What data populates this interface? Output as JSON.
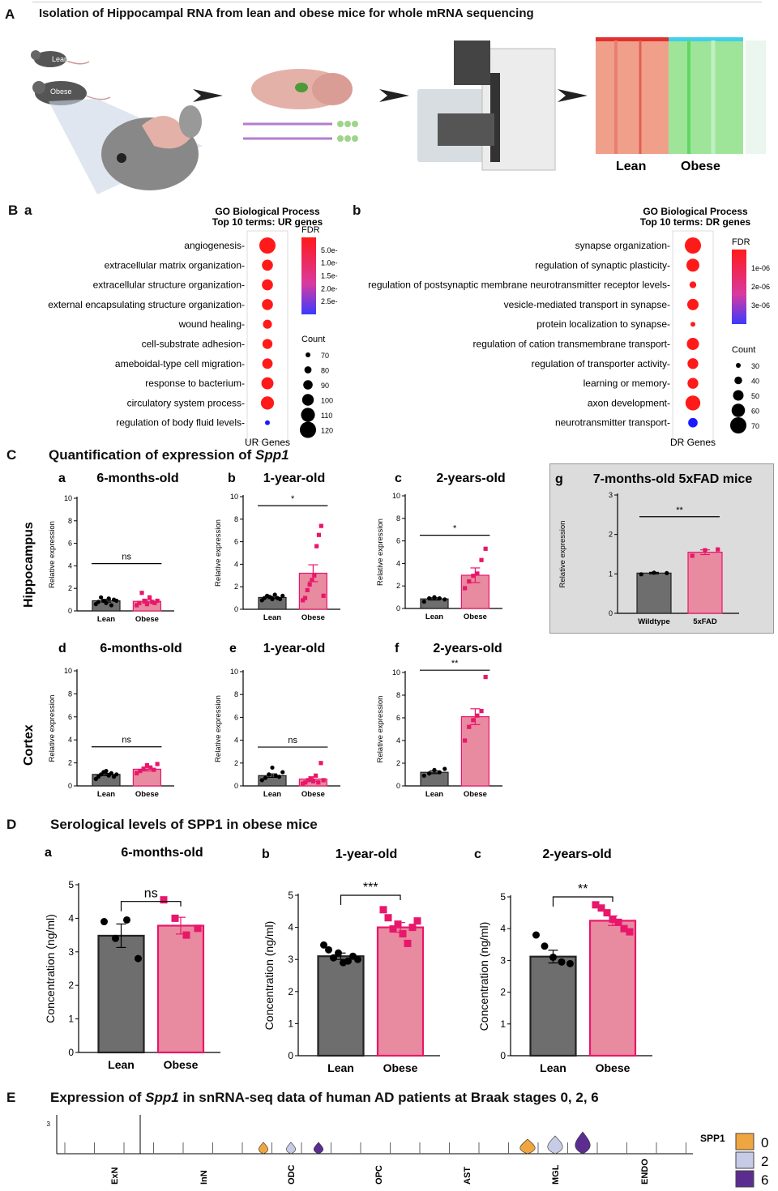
{
  "panelA": {
    "letter": "A",
    "title": "Isolation of Hippocampal RNA from lean and obese mice for whole mRNA sequencing",
    "mouse_labels": [
      "Lean",
      "Obese"
    ],
    "heatmap_labels": [
      "Lean",
      "Obese"
    ]
  },
  "panelB": {
    "letter": "B",
    "a": {
      "letter": "a",
      "title1": "GO Biological Process",
      "title2": "Top 10 terms: UR genes",
      "xlabel": "UR Genes",
      "fdr_title": "FDR",
      "fdr_ticks": [
        "5.0e-",
        "1.0e-",
        "1.5e-",
        "2.0e-",
        "2.5e-"
      ],
      "count_title": "Count",
      "count_ticks": [
        "70",
        "80",
        "90",
        "100",
        "110",
        "120"
      ]
    },
    "b": {
      "letter": "b",
      "title1": "GO Biological Process",
      "title2": "Top 10 terms: DR genes",
      "xlabel": "DR Genes",
      "fdr_title": "FDR",
      "fdr_ticks": [
        "1e-06",
        "2e-06",
        "3e-06"
      ],
      "count_title": "Count",
      "count_ticks": [
        "30",
        "40",
        "50",
        "60",
        "70"
      ]
    }
  },
  "panelC": {
    "letter": "C",
    "title": "Quantification of expression of",
    "gene": "Spp1",
    "row_labels": [
      "Hippocampus",
      "Cortex"
    ],
    "ylabel": "Relative expression",
    "g_letter": "g",
    "g_title": "7-months-old 5xFAD mice"
  },
  "panelD": {
    "letter": "D",
    "title": "Serological levels of SPP1 in obese mice",
    "ylabel": "Concentration (ng/ml)"
  },
  "panelE": {
    "letter": "E",
    "title_pre": "Expression of",
    "gene": "Spp1",
    "title_post": "in snRNA-seq data of human AD patients at Braak stages 0, 2, 6",
    "gene_label": "SPP1",
    "y_tick": "3",
    "legend": [
      "0",
      "2",
      "6"
    ]
  },
  "chart_data": [
    {
      "id": "B-a",
      "type": "scatter",
      "title": "GO Biological Process Top 10 terms: UR genes",
      "xlabel": "UR Genes",
      "terms": [
        "angiogenesis",
        "extracellular matrix organization",
        "extracellular structure organization",
        "external encapsulating structure organization",
        "wound healing",
        "cell-substrate adhesion",
        "ameboidal-type cell migration",
        "response to bacterium",
        "circulatory system process",
        "regulation of body fluid levels"
      ],
      "count": [
        120,
        95,
        95,
        95,
        85,
        90,
        92,
        100,
        105,
        65
      ],
      "colors": [
        "#ff1a1a",
        "#ff1a1a",
        "#ff1a1a",
        "#ff1a1a",
        "#ff1a1a",
        "#ff1a1a",
        "#ff1a1a",
        "#ff1a1a",
        "#ff1a1a",
        "#1a1aff"
      ]
    },
    {
      "id": "B-b",
      "type": "scatter",
      "title": "GO Biological Process Top 10 terms: DR genes",
      "xlabel": "DR Genes",
      "terms": [
        "synapse organization",
        "regulation of synaptic plasticity",
        "regulation of postsynaptic membrane neurotransmitter receptor levels",
        "vesicle-mediated transport in synapse",
        "protein localization to synapse",
        "regulation of cation transmembrane transport",
        "regulation of transporter activity",
        "learning or memory",
        "axon development",
        "neurotransmitter transport"
      ],
      "count": [
        70,
        58,
        35,
        52,
        28,
        55,
        50,
        50,
        65,
        45
      ],
      "colors": [
        "#ff1a1a",
        "#ff1a1a",
        "#ff1a1a",
        "#ff1a1a",
        "#ff1a1a",
        "#ff1a1a",
        "#ff1a1a",
        "#ff1a1a",
        "#ff1a1a",
        "#1a1aff"
      ]
    },
    {
      "id": "C-a",
      "type": "bar",
      "letter": "a",
      "title": "6-months-old",
      "categories": [
        "Lean",
        "Obese"
      ],
      "means": [
        0.9,
        0.85
      ],
      "sem": [
        0.12,
        0.15
      ],
      "ylim": [
        0,
        10
      ],
      "yticks": [
        0,
        2,
        4,
        6,
        8,
        10
      ],
      "sig": "ns",
      "points": [
        [
          0.6,
          0.8,
          1.2,
          0.9,
          0.7,
          1.1,
          0.5,
          1.0,
          0.9
        ],
        [
          0.5,
          0.7,
          1.6,
          0.9,
          0.6,
          1.2,
          0.8,
          0.7,
          0.9
        ]
      ]
    },
    {
      "id": "C-b",
      "type": "bar",
      "letter": "b",
      "title": "1-year-old",
      "categories": [
        "Lean",
        "Obese"
      ],
      "means": [
        1.05,
        3.2
      ],
      "sem": [
        0.1,
        0.75
      ],
      "ylim": [
        0,
        10
      ],
      "yticks": [
        0,
        2,
        4,
        6,
        8,
        10
      ],
      "sig": "*",
      "points": [
        [
          0.8,
          1.0,
          1.2,
          1.1,
          0.9,
          1.3,
          1.0,
          0.9,
          1.2
        ],
        [
          0.8,
          1.0,
          1.7,
          2.2,
          2.6,
          3.0,
          5.6,
          6.6,
          7.4,
          1.2
        ]
      ]
    },
    {
      "id": "C-c",
      "type": "bar",
      "letter": "c",
      "title": "2-years-old",
      "categories": [
        "Lean",
        "Obese"
      ],
      "means": [
        0.85,
        2.95
      ],
      "sem": [
        0.1,
        0.65
      ],
      "ylim": [
        0,
        10
      ],
      "yticks": [
        0,
        2,
        4,
        6,
        8,
        10
      ],
      "sig": "*",
      "points": [
        [
          0.6,
          0.9,
          1.0,
          0.9,
          0.8
        ],
        [
          1.8,
          2.4,
          2.9,
          3.1,
          4.3,
          5.3
        ]
      ]
    },
    {
      "id": "C-d",
      "type": "bar",
      "letter": "d",
      "title": "6-months-old",
      "categories": [
        "Lean",
        "Obese"
      ],
      "means": [
        1.0,
        1.45
      ],
      "sem": [
        0.1,
        0.15
      ],
      "ylim": [
        0,
        10
      ],
      "yticks": [
        0,
        2,
        4,
        6,
        8,
        10
      ],
      "sig": "ns",
      "points": [
        [
          0.6,
          0.8,
          1.0,
          1.2,
          1.3,
          0.9,
          1.1,
          0.8,
          1.0
        ],
        [
          1.1,
          1.3,
          1.5,
          1.8,
          1.6,
          1.4,
          1.9
        ]
      ]
    },
    {
      "id": "C-e",
      "type": "bar",
      "letter": "e",
      "title": "1-year-old",
      "categories": [
        "Lean",
        "Obese"
      ],
      "means": [
        0.9,
        0.6
      ],
      "sem": [
        0.15,
        0.2
      ],
      "ylim": [
        0,
        10
      ],
      "yticks": [
        0,
        2,
        4,
        6,
        8,
        10
      ],
      "sig": "ns",
      "points": [
        [
          0.5,
          0.7,
          1.0,
          1.6,
          0.9,
          0.8,
          1.2
        ],
        [
          0.2,
          0.3,
          0.5,
          0.6,
          0.4,
          0.9,
          0.3,
          2.0,
          0.5
        ]
      ]
    },
    {
      "id": "C-f",
      "type": "bar",
      "letter": "f",
      "title": "2-years-old",
      "categories": [
        "Lean",
        "Obese"
      ],
      "means": [
        1.2,
        6.1
      ],
      "sem": [
        0.12,
        0.7
      ],
      "ylim": [
        0,
        10
      ],
      "yticks": [
        0,
        2,
        4,
        6,
        8,
        10
      ],
      "sig": "**",
      "points": [
        [
          0.9,
          1.1,
          1.4,
          1.2,
          1.5
        ],
        [
          4.0,
          5.2,
          5.8,
          6.2,
          6.6,
          9.6
        ]
      ]
    },
    {
      "id": "C-g",
      "type": "bar",
      "letter": "g",
      "title": "7-months-old 5xFAD mice",
      "categories": [
        "Wildtype",
        "5xFAD"
      ],
      "means": [
        1.02,
        1.55
      ],
      "sem": [
        0.02,
        0.06
      ],
      "ylim": [
        0,
        3
      ],
      "yticks": [
        0,
        1,
        2,
        3
      ],
      "sig": "**",
      "points": [
        [
          0.99,
          1.03,
          1.02
        ],
        [
          1.46,
          1.6,
          1.62
        ]
      ]
    },
    {
      "id": "D-a",
      "type": "bar",
      "letter": "a",
      "title": "6-months-old",
      "categories": [
        "Lean",
        "Obese"
      ],
      "means": [
        3.48,
        3.78
      ],
      "sem": [
        0.35,
        0.25
      ],
      "ylim": [
        0,
        5
      ],
      "yticks": [
        0,
        1,
        2,
        3,
        4,
        5
      ],
      "sig": "ns",
      "points": [
        [
          3.9,
          3.4,
          3.95,
          2.8
        ],
        [
          4.55,
          4.0,
          3.5,
          3.7
        ]
      ]
    },
    {
      "id": "D-b",
      "type": "bar",
      "letter": "b",
      "title": "1-year-old",
      "categories": [
        "Lean",
        "Obese"
      ],
      "means": [
        3.1,
        4.0
      ],
      "sem": [
        0.1,
        0.15
      ],
      "ylim": [
        0,
        5
      ],
      "yticks": [
        0,
        1,
        2,
        3,
        4,
        5
      ],
      "sig": "***",
      "points": [
        [
          3.45,
          3.3,
          3.05,
          3.2,
          2.9,
          2.95,
          3.1,
          3.0
        ],
        [
          4.55,
          4.3,
          3.95,
          4.1,
          3.8,
          3.5,
          4.0,
          4.2
        ]
      ]
    },
    {
      "id": "D-c",
      "type": "bar",
      "letter": "c",
      "title": "2-years-old",
      "categories": [
        "Lean",
        "Obese"
      ],
      "means": [
        3.12,
        4.25
      ],
      "sem": [
        0.2,
        0.15
      ],
      "ylim": [
        0,
        5
      ],
      "yticks": [
        0,
        1,
        2,
        3,
        4,
        5
      ],
      "sig": "**",
      "points": [
        [
          3.8,
          3.45,
          3.1,
          2.95,
          2.9
        ],
        [
          4.75,
          4.65,
          4.5,
          4.3,
          4.2,
          4.0,
          3.9
        ]
      ]
    },
    {
      "id": "E",
      "type": "violin",
      "categories": [
        "ExN",
        "InN",
        "ODC",
        "OPC",
        "AST",
        "MGL",
        "ENDO"
      ],
      "series": [
        {
          "name": "0",
          "color": "#f0a640"
        },
        {
          "name": "2",
          "color": "#c8cbe6"
        },
        {
          "name": "6",
          "color": "#5c2d91"
        }
      ]
    }
  ]
}
